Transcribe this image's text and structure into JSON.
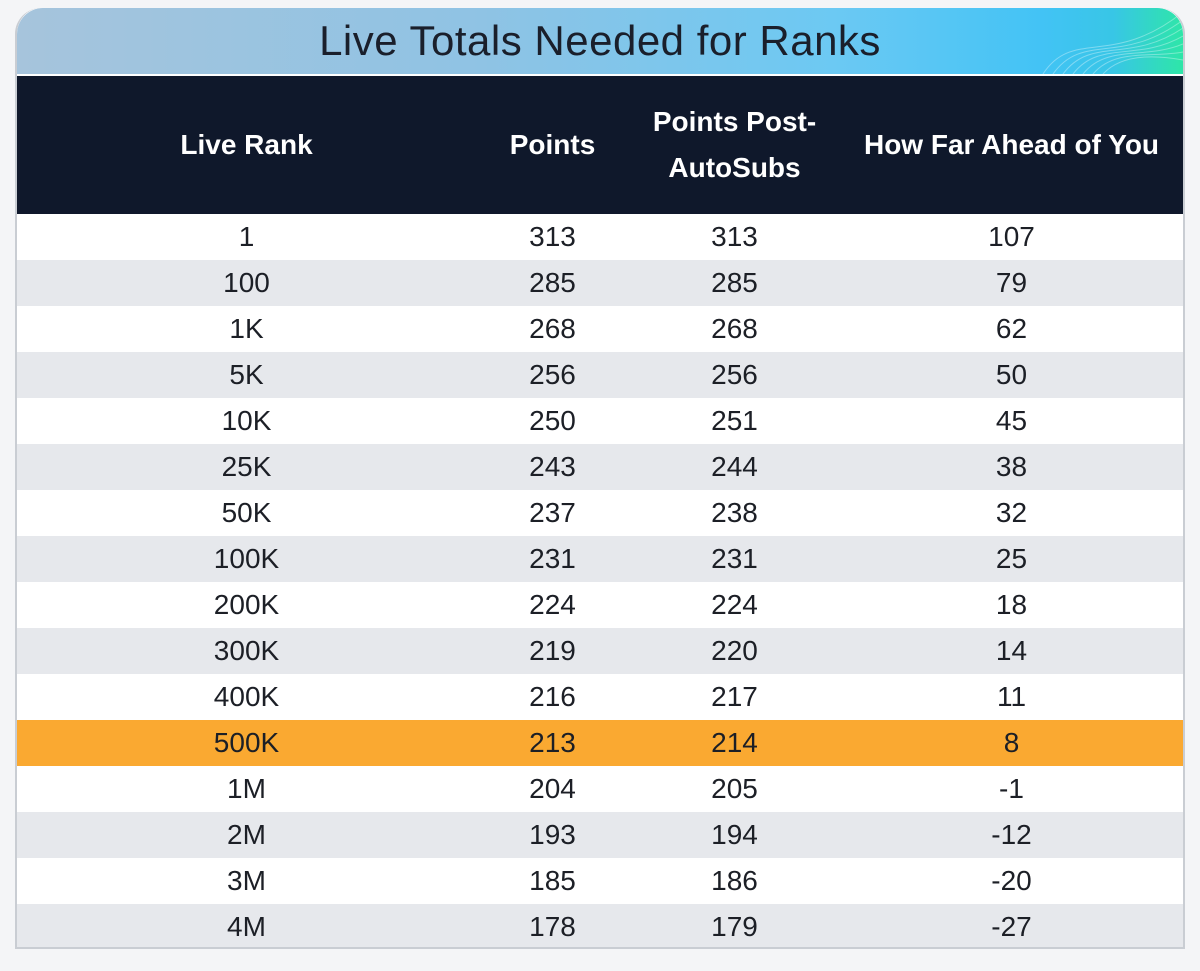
{
  "title": "Live Totals Needed for Ranks",
  "headers": {
    "rank": "Live Rank",
    "points": "Points",
    "post_autosubs": "Points Post-AutoSubs",
    "ahead": "How Far Ahead of You"
  },
  "highlight_color": "#faa931",
  "header_color": "#0f182b",
  "rows": [
    {
      "rank": "1",
      "points": "313",
      "post": "313",
      "ahead": "107"
    },
    {
      "rank": "100",
      "points": "285",
      "post": "285",
      "ahead": "79"
    },
    {
      "rank": "1K",
      "points": "268",
      "post": "268",
      "ahead": "62"
    },
    {
      "rank": "5K",
      "points": "256",
      "post": "256",
      "ahead": "50"
    },
    {
      "rank": "10K",
      "points": "250",
      "post": "251",
      "ahead": "45"
    },
    {
      "rank": "25K",
      "points": "243",
      "post": "244",
      "ahead": "38"
    },
    {
      "rank": "50K",
      "points": "237",
      "post": "238",
      "ahead": "32"
    },
    {
      "rank": "100K",
      "points": "231",
      "post": "231",
      "ahead": "25"
    },
    {
      "rank": "200K",
      "points": "224",
      "post": "224",
      "ahead": "18"
    },
    {
      "rank": "300K",
      "points": "219",
      "post": "220",
      "ahead": "14"
    },
    {
      "rank": "400K",
      "points": "216",
      "post": "217",
      "ahead": "11"
    },
    {
      "rank": "500K",
      "points": "213",
      "post": "214",
      "ahead": "8",
      "highlight": true
    },
    {
      "rank": "1M",
      "points": "204",
      "post": "205",
      "ahead": "-1"
    },
    {
      "rank": "2M",
      "points": "193",
      "post": "194",
      "ahead": "-12"
    },
    {
      "rank": "3M",
      "points": "185",
      "post": "186",
      "ahead": "-20"
    },
    {
      "rank": "4M",
      "points": "178",
      "post": "179",
      "ahead": "-27"
    }
  ]
}
